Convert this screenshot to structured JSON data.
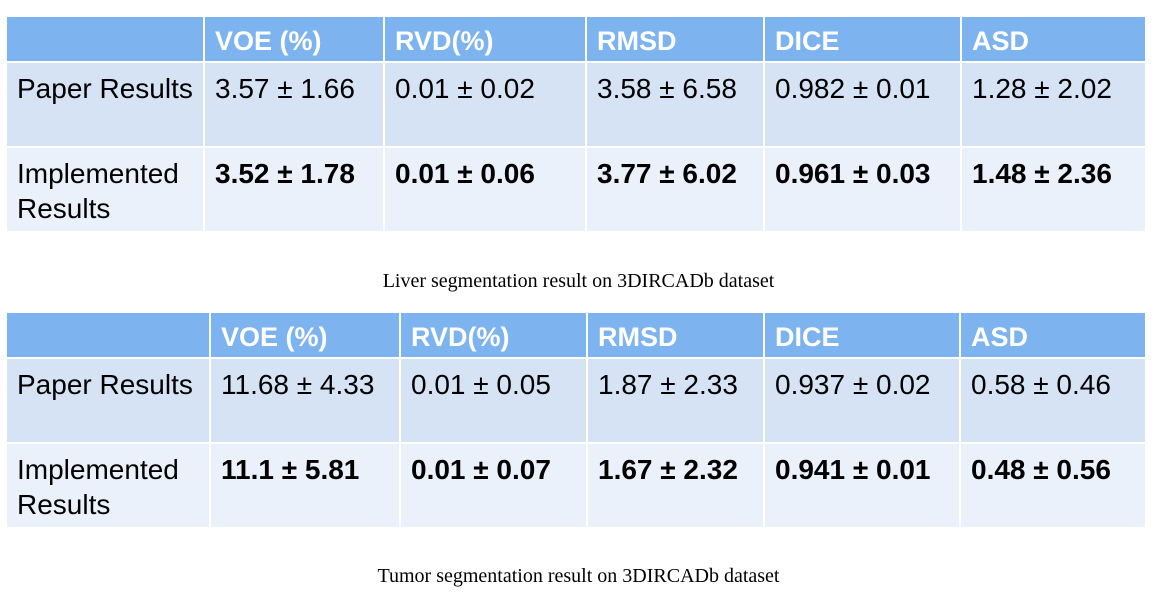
{
  "liver": {
    "headers": [
      "",
      "VOE (%)",
      "RVD(%)",
      "RMSD",
      "DICE",
      "ASD"
    ],
    "rows": [
      {
        "label": "Paper Results",
        "values": [
          "3.57 ± 1.66",
          "0.01 ± 0.02",
          "3.58 ± 6.58",
          "0.982 ± 0.01",
          "1.28 ± 2.02"
        ]
      },
      {
        "label": "Implemented Results",
        "values": [
          "3.52 ± 1.78",
          "0.01 ± 0.06",
          "3.77 ± 6.02",
          "0.961 ± 0.03",
          "1.48 ± 2.36"
        ]
      }
    ],
    "caption": "Liver segmentation result on 3DIRCADb dataset"
  },
  "tumor": {
    "headers": [
      "",
      "VOE (%)",
      "RVD(%)",
      "RMSD",
      "DICE",
      "ASD"
    ],
    "rows": [
      {
        "label": "Paper Results",
        "values": [
          "11.68 ± 4.33",
          "0.01 ± 0.05",
          "1.87 ± 2.33",
          "0.937 ± 0.02",
          "0.58 ± 0.46"
        ]
      },
      {
        "label": "Implemented Results",
        "values": [
          "11.1 ± 5.81",
          "0.01 ± 0.07",
          "1.67 ± 2.32",
          "0.941 ± 0.01",
          "0.48 ± 0.56"
        ]
      }
    ],
    "caption": "Tumor segmentation result on 3DIRCADb dataset"
  },
  "colors": {
    "header_bg": "#7db3ee",
    "row1_bg": "#d6e3f5",
    "row2_bg": "#ebf1fa"
  }
}
